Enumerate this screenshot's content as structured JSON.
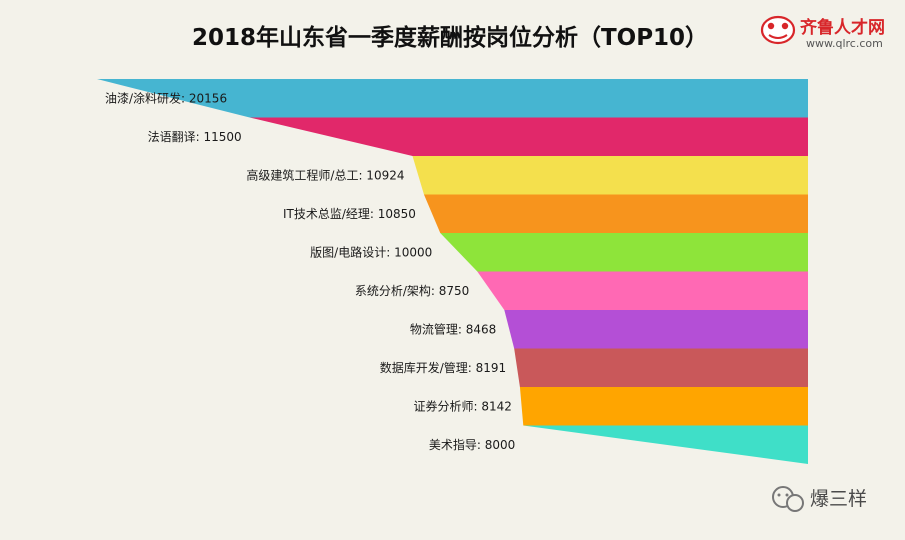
{
  "chart_data": {
    "type": "bar",
    "title": "2018年山东省一季度薪酬按岗位分析（TOP10）",
    "categories": [
      "油漆/涂料研发",
      "法语翻译",
      "高级建筑工程师/总工",
      "IT技术总监/经理",
      "版图/电路设计",
      "系统分析/架构",
      "物流管理",
      "数据库开发/管理",
      "证券分析师",
      "美术指导"
    ],
    "values": [
      20156,
      11500,
      10924,
      10850,
      10000,
      8750,
      8468,
      8191,
      8142,
      8000
    ],
    "labels": [
      "油漆/涂料研发: 20156",
      "法语翻译: 11500",
      "高级建筑工程师/总工: 10924",
      "IT技术总监/经理: 10850",
      "版图/电路设计: 10000",
      "系统分析/架构: 8750",
      "物流管理: 8468",
      "数据库开发/管理: 8191",
      "证券分析师: 8142",
      "美术指导: 8000"
    ],
    "colors": [
      "#46b5d1",
      "#e1286a",
      "#f4e04d",
      "#f7941d",
      "#8ee43a",
      "#ff69b4",
      "#b44fd6",
      "#c9585a",
      "#ffa500",
      "#3fdfc8"
    ],
    "orientation": "horizontal-funnel",
    "legend": "none",
    "grid": false
  },
  "branding": {
    "logo_name": "齐鲁人才网",
    "logo_url": "www.qlrc.com",
    "watermark": "爆三样"
  }
}
